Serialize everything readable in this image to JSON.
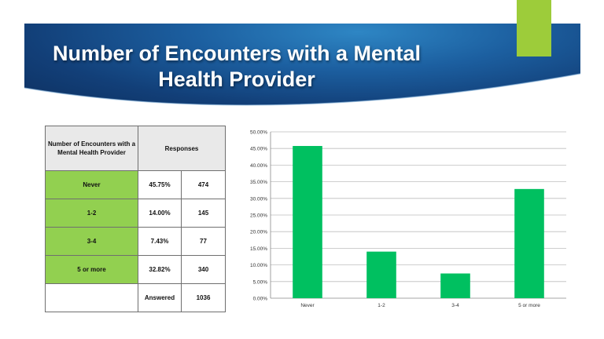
{
  "slide": {
    "title": "Number of Encounters with a Mental Health Provider"
  },
  "colors": {
    "banner": "#1c5fa0",
    "accent": "#9dcc3a",
    "table_category": "#92d050",
    "table_header": "#e9e9e9",
    "bar": "#00c060"
  },
  "table": {
    "header_category": "Number of Encounters with a Mental Health Provider",
    "header_responses": "Responses",
    "rows": [
      {
        "label": "Never",
        "percent": "45.75%",
        "count": "474"
      },
      {
        "label": "1-2",
        "percent": "14.00%",
        "count": "145"
      },
      {
        "label": "3-4",
        "percent": "7.43%",
        "count": "77"
      },
      {
        "label": "5 or more",
        "percent": "32.82%",
        "count": "340"
      }
    ],
    "footer_label": "Answered",
    "footer_value": "1036"
  },
  "chart_data": {
    "type": "bar",
    "categories": [
      "Never",
      "1-2",
      "3-4",
      "5 or more"
    ],
    "values": [
      45.75,
      14.0,
      7.43,
      32.82
    ],
    "ylim": [
      0,
      50
    ],
    "yticks": [
      "0.00%",
      "5.00%",
      "10.00%",
      "15.00%",
      "20.00%",
      "25.00%",
      "30.00%",
      "35.00%",
      "40.00%",
      "45.00%",
      "50.00%"
    ],
    "grid": true,
    "title": "",
    "xlabel": "",
    "ylabel": ""
  }
}
